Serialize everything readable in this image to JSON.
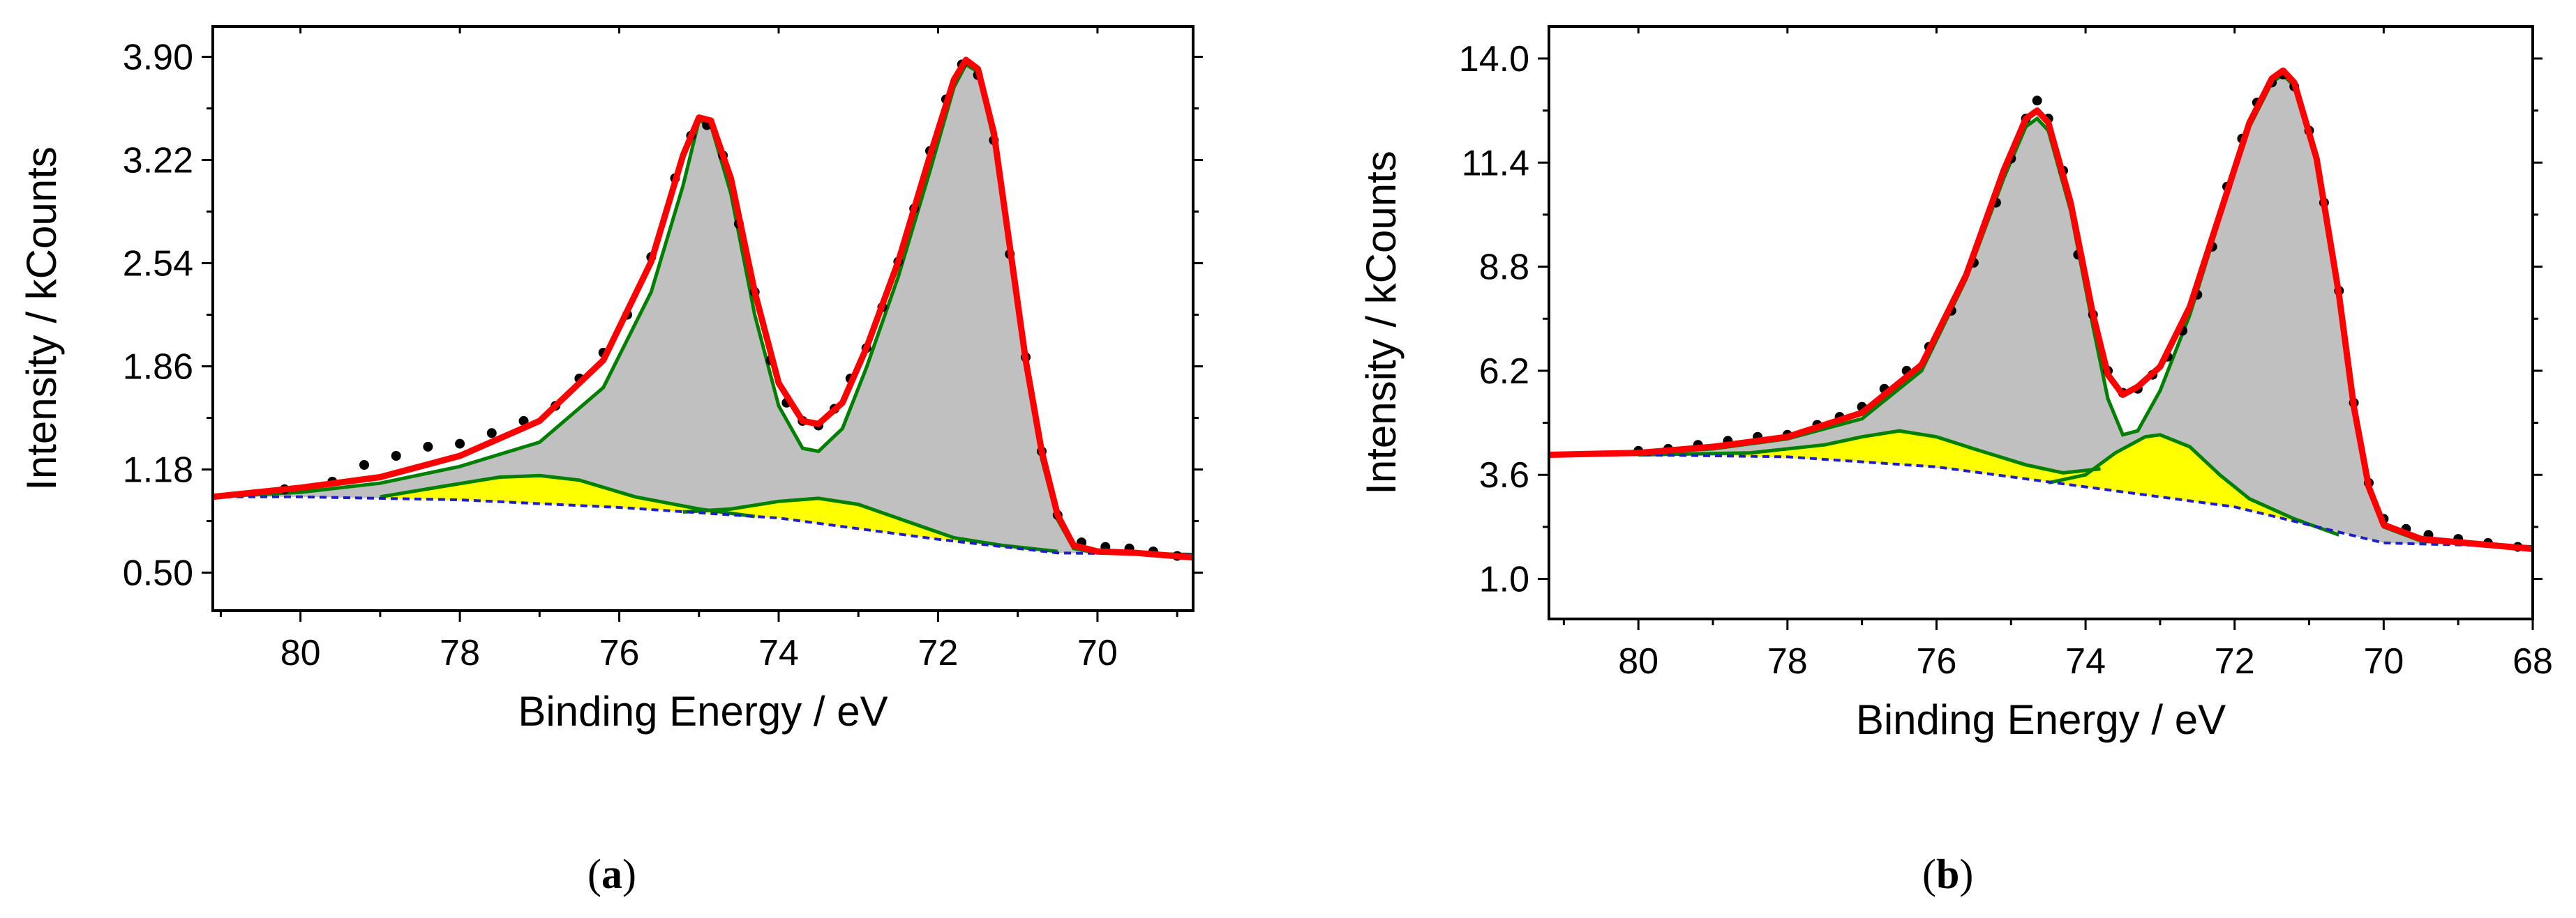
{
  "chart_data": [
    {
      "type": "line",
      "panel_label": "a",
      "xlabel": "Binding Energy / eV",
      "ylabel": "Intensity / kCounts",
      "xlim": [
        81.1,
        68.8
      ],
      "ylim": [
        0.25,
        4.1
      ],
      "x_ticks": [
        80,
        78,
        76,
        74,
        72,
        70
      ],
      "x_tick_labels": [
        "80",
        "78",
        "76",
        "74",
        "72",
        "70"
      ],
      "y_ticks": [
        0.5,
        1.18,
        1.86,
        2.54,
        3.22,
        3.9
      ],
      "y_tick_labels": [
        "0.50",
        "1.18",
        "1.86",
        "2.54",
        "3.22",
        "3.90"
      ],
      "colors": {
        "envelope": "#ff0000",
        "component": "#008000",
        "background": "#1f1fc8",
        "main_fill": "#c0c0c0",
        "minor_fill": "#ffff00",
        "data": "#000000"
      },
      "baseline": [
        [
          81.1,
          1.0
        ],
        [
          80,
          1.0
        ],
        [
          78,
          0.98
        ],
        [
          76,
          0.93
        ],
        [
          74,
          0.86
        ],
        [
          72,
          0.72
        ],
        [
          70.5,
          0.63
        ],
        [
          68.8,
          0.62
        ]
      ],
      "main_component": [
        [
          81.1,
          1.0
        ],
        [
          80,
          1.03
        ],
        [
          79,
          1.09
        ],
        [
          78,
          1.2
        ],
        [
          77,
          1.36
        ],
        [
          76.2,
          1.72
        ],
        [
          75.6,
          2.35
        ],
        [
          75.2,
          3.05
        ],
        [
          75.0,
          3.48
        ],
        [
          74.85,
          3.45
        ],
        [
          74.6,
          3.0
        ],
        [
          74.3,
          2.2
        ],
        [
          74.0,
          1.6
        ],
        [
          73.7,
          1.32
        ],
        [
          73.5,
          1.3
        ],
        [
          73.2,
          1.45
        ],
        [
          72.9,
          1.85
        ],
        [
          72.5,
          2.45
        ],
        [
          72.1,
          3.15
        ],
        [
          71.8,
          3.7
        ],
        [
          71.65,
          3.85
        ],
        [
          71.5,
          3.8
        ],
        [
          71.3,
          3.35
        ],
        [
          71.1,
          2.6
        ],
        [
          70.9,
          1.85
        ],
        [
          70.7,
          1.25
        ],
        [
          70.5,
          0.85
        ],
        [
          70.3,
          0.66
        ],
        [
          70.0,
          0.63
        ],
        [
          68.8,
          0.62
        ]
      ],
      "minor_component_1": [
        [
          79,
          1.0
        ],
        [
          78.2,
          1.07
        ],
        [
          77.5,
          1.13
        ],
        [
          77.0,
          1.14
        ],
        [
          76.5,
          1.11
        ],
        [
          75.8,
          1.0
        ],
        [
          75,
          0.92
        ],
        [
          74.3,
          0.87
        ]
      ],
      "minor_component_2": [
        [
          75.2,
          0.9
        ],
        [
          74.6,
          0.92
        ],
        [
          74.0,
          0.97
        ],
        [
          73.5,
          0.99
        ],
        [
          73.0,
          0.95
        ],
        [
          72.4,
          0.84
        ],
        [
          71.8,
          0.73
        ],
        [
          71.2,
          0.68
        ],
        [
          70.5,
          0.64
        ]
      ],
      "envelope": [
        [
          81.1,
          1.0
        ],
        [
          80,
          1.06
        ],
        [
          79,
          1.13
        ],
        [
          78,
          1.27
        ],
        [
          77,
          1.5
        ],
        [
          76.2,
          1.9
        ],
        [
          75.6,
          2.55
        ],
        [
          75.2,
          3.25
        ],
        [
          75.0,
          3.5
        ],
        [
          74.85,
          3.48
        ],
        [
          74.6,
          3.1
        ],
        [
          74.3,
          2.35
        ],
        [
          74.0,
          1.75
        ],
        [
          73.7,
          1.5
        ],
        [
          73.5,
          1.48
        ],
        [
          73.2,
          1.62
        ],
        [
          72.9,
          1.98
        ],
        [
          72.5,
          2.55
        ],
        [
          72.1,
          3.25
        ],
        [
          71.8,
          3.75
        ],
        [
          71.65,
          3.88
        ],
        [
          71.5,
          3.82
        ],
        [
          71.3,
          3.4
        ],
        [
          71.1,
          2.65
        ],
        [
          70.9,
          1.9
        ],
        [
          70.7,
          1.3
        ],
        [
          70.5,
          0.88
        ],
        [
          70.3,
          0.68
        ],
        [
          70.0,
          0.64
        ],
        [
          69.5,
          0.63
        ],
        [
          68.8,
          0.6
        ]
      ],
      "data_points": [
        [
          80.2,
          1.05
        ],
        [
          79.6,
          1.1
        ],
        [
          79.2,
          1.21
        ],
        [
          78.8,
          1.27
        ],
        [
          78.4,
          1.33
        ],
        [
          78.0,
          1.35
        ],
        [
          77.6,
          1.42
        ],
        [
          77.2,
          1.5
        ],
        [
          76.8,
          1.6
        ],
        [
          76.5,
          1.78
        ],
        [
          76.2,
          1.95
        ],
        [
          75.9,
          2.2
        ],
        [
          75.6,
          2.58
        ],
        [
          75.3,
          3.1
        ],
        [
          75.1,
          3.38
        ],
        [
          74.9,
          3.45
        ],
        [
          74.7,
          3.25
        ],
        [
          74.5,
          2.8
        ],
        [
          74.3,
          2.35
        ],
        [
          74.1,
          1.9
        ],
        [
          73.9,
          1.62
        ],
        [
          73.7,
          1.5
        ],
        [
          73.5,
          1.47
        ],
        [
          73.3,
          1.58
        ],
        [
          73.1,
          1.78
        ],
        [
          72.9,
          1.98
        ],
        [
          72.7,
          2.25
        ],
        [
          72.5,
          2.55
        ],
        [
          72.3,
          2.9
        ],
        [
          72.1,
          3.28
        ],
        [
          71.9,
          3.62
        ],
        [
          71.7,
          3.85
        ],
        [
          71.5,
          3.78
        ],
        [
          71.3,
          3.35
        ],
        [
          71.1,
          2.6
        ],
        [
          70.9,
          1.92
        ],
        [
          70.7,
          1.3
        ],
        [
          70.5,
          0.88
        ],
        [
          70.2,
          0.7
        ],
        [
          69.9,
          0.67
        ],
        [
          69.6,
          0.66
        ],
        [
          69.3,
          0.64
        ],
        [
          69.0,
          0.61
        ]
      ]
    },
    {
      "type": "line",
      "panel_label": "b",
      "xlabel": "Binding Energy / eV",
      "ylabel": "Intensity / kCounts",
      "xlim": [
        81.2,
        68.0
      ],
      "ylim": [
        0.0,
        14.8
      ],
      "x_ticks": [
        80,
        78,
        76,
        74,
        72,
        70,
        68
      ],
      "x_tick_labels": [
        "80",
        "78",
        "76",
        "74",
        "72",
        "70",
        "68"
      ],
      "y_ticks": [
        1.0,
        3.6,
        6.2,
        8.8,
        11.4,
        14.0
      ],
      "y_tick_labels": [
        "1.0",
        "3.6",
        "6.2",
        "8.8",
        "11.4",
        "14.0"
      ],
      "colors": {
        "envelope": "#ff0000",
        "component": "#008000",
        "background": "#1f1fc8",
        "main_fill": "#c0c0c0",
        "minor_fill": "#ffff00",
        "data": "#000000"
      },
      "baseline": [
        [
          81.2,
          4.1
        ],
        [
          80,
          4.1
        ],
        [
          78,
          4.05
        ],
        [
          76,
          3.8
        ],
        [
          74,
          3.3
        ],
        [
          72,
          2.8
        ],
        [
          70,
          1.9
        ],
        [
          68,
          1.8
        ]
      ],
      "main_component": [
        [
          81.2,
          4.1
        ],
        [
          80,
          4.15
        ],
        [
          79,
          4.25
        ],
        [
          78,
          4.5
        ],
        [
          77,
          5.0
        ],
        [
          76.2,
          6.2
        ],
        [
          75.6,
          8.5
        ],
        [
          75.1,
          11.0
        ],
        [
          74.8,
          12.3
        ],
        [
          74.65,
          12.5
        ],
        [
          74.5,
          12.2
        ],
        [
          74.2,
          10.2
        ],
        [
          73.9,
          7.3
        ],
        [
          73.7,
          5.5
        ],
        [
          73.5,
          4.6
        ],
        [
          73.3,
          4.7
        ],
        [
          73.0,
          5.7
        ],
        [
          72.6,
          7.6
        ],
        [
          72.2,
          10.0
        ],
        [
          71.8,
          12.3
        ],
        [
          71.5,
          13.4
        ],
        [
          71.35,
          13.6
        ],
        [
          71.2,
          13.3
        ],
        [
          70.9,
          11.4
        ],
        [
          70.6,
          8.0
        ],
        [
          70.4,
          5.2
        ],
        [
          70.2,
          3.2
        ],
        [
          70.0,
          2.3
        ],
        [
          69.5,
          1.95
        ],
        [
          68,
          1.8
        ]
      ],
      "minor_component_1": [
        [
          80,
          4.1
        ],
        [
          78.5,
          4.15
        ],
        [
          77.5,
          4.35
        ],
        [
          77.0,
          4.55
        ],
        [
          76.5,
          4.7
        ],
        [
          76.0,
          4.55
        ],
        [
          75.5,
          4.25
        ],
        [
          74.8,
          3.85
        ],
        [
          74.3,
          3.65
        ],
        [
          73.8,
          3.75
        ]
      ],
      "minor_component_2": [
        [
          74.5,
          3.4
        ],
        [
          74.0,
          3.6
        ],
        [
          73.6,
          4.15
        ],
        [
          73.2,
          4.55
        ],
        [
          73.0,
          4.6
        ],
        [
          72.6,
          4.3
        ],
        [
          72.2,
          3.6
        ],
        [
          71.8,
          3.0
        ],
        [
          71.2,
          2.5
        ],
        [
          70.6,
          2.1
        ]
      ],
      "envelope": [
        [
          81.2,
          4.1
        ],
        [
          80,
          4.15
        ],
        [
          79,
          4.3
        ],
        [
          78,
          4.55
        ],
        [
          77,
          5.15
        ],
        [
          76.2,
          6.35
        ],
        [
          75.6,
          8.6
        ],
        [
          75.1,
          11.2
        ],
        [
          74.8,
          12.5
        ],
        [
          74.65,
          12.7
        ],
        [
          74.5,
          12.4
        ],
        [
          74.2,
          10.4
        ],
        [
          73.9,
          7.6
        ],
        [
          73.7,
          6.1
        ],
        [
          73.5,
          5.6
        ],
        [
          73.3,
          5.8
        ],
        [
          73.0,
          6.3
        ],
        [
          72.6,
          7.8
        ],
        [
          72.2,
          10.1
        ],
        [
          71.8,
          12.4
        ],
        [
          71.5,
          13.5
        ],
        [
          71.35,
          13.7
        ],
        [
          71.2,
          13.4
        ],
        [
          70.9,
          11.5
        ],
        [
          70.6,
          8.1
        ],
        [
          70.4,
          5.3
        ],
        [
          70.2,
          3.3
        ],
        [
          70.0,
          2.35
        ],
        [
          69.5,
          2.0
        ],
        [
          68,
          1.75
        ]
      ],
      "data_points": [
        [
          80.0,
          4.2
        ],
        [
          79.6,
          4.25
        ],
        [
          79.2,
          4.35
        ],
        [
          78.8,
          4.45
        ],
        [
          78.4,
          4.55
        ],
        [
          78.0,
          4.6
        ],
        [
          77.6,
          4.85
        ],
        [
          77.3,
          5.05
        ],
        [
          77.0,
          5.3
        ],
        [
          76.7,
          5.75
        ],
        [
          76.4,
          6.2
        ],
        [
          76.1,
          6.8
        ],
        [
          75.8,
          7.7
        ],
        [
          75.5,
          8.9
        ],
        [
          75.2,
          10.4
        ],
        [
          75.0,
          11.5
        ],
        [
          74.8,
          12.5
        ],
        [
          74.65,
          12.95
        ],
        [
          74.5,
          12.5
        ],
        [
          74.3,
          11.2
        ],
        [
          74.1,
          9.1
        ],
        [
          73.9,
          7.6
        ],
        [
          73.7,
          6.2
        ],
        [
          73.5,
          5.65
        ],
        [
          73.3,
          5.75
        ],
        [
          73.1,
          6.1
        ],
        [
          72.9,
          6.55
        ],
        [
          72.7,
          7.2
        ],
        [
          72.5,
          8.1
        ],
        [
          72.3,
          9.3
        ],
        [
          72.1,
          10.8
        ],
        [
          71.9,
          12.0
        ],
        [
          71.7,
          12.9
        ],
        [
          71.5,
          13.4
        ],
        [
          71.35,
          13.6
        ],
        [
          71.2,
          13.3
        ],
        [
          71.0,
          12.2
        ],
        [
          70.8,
          10.4
        ],
        [
          70.6,
          8.2
        ],
        [
          70.4,
          5.4
        ],
        [
          70.2,
          3.4
        ],
        [
          70.0,
          2.5
        ],
        [
          69.7,
          2.25
        ],
        [
          69.4,
          2.1
        ],
        [
          69.0,
          2.0
        ],
        [
          68.6,
          1.9
        ],
        [
          68.2,
          1.8
        ]
      ]
    }
  ]
}
